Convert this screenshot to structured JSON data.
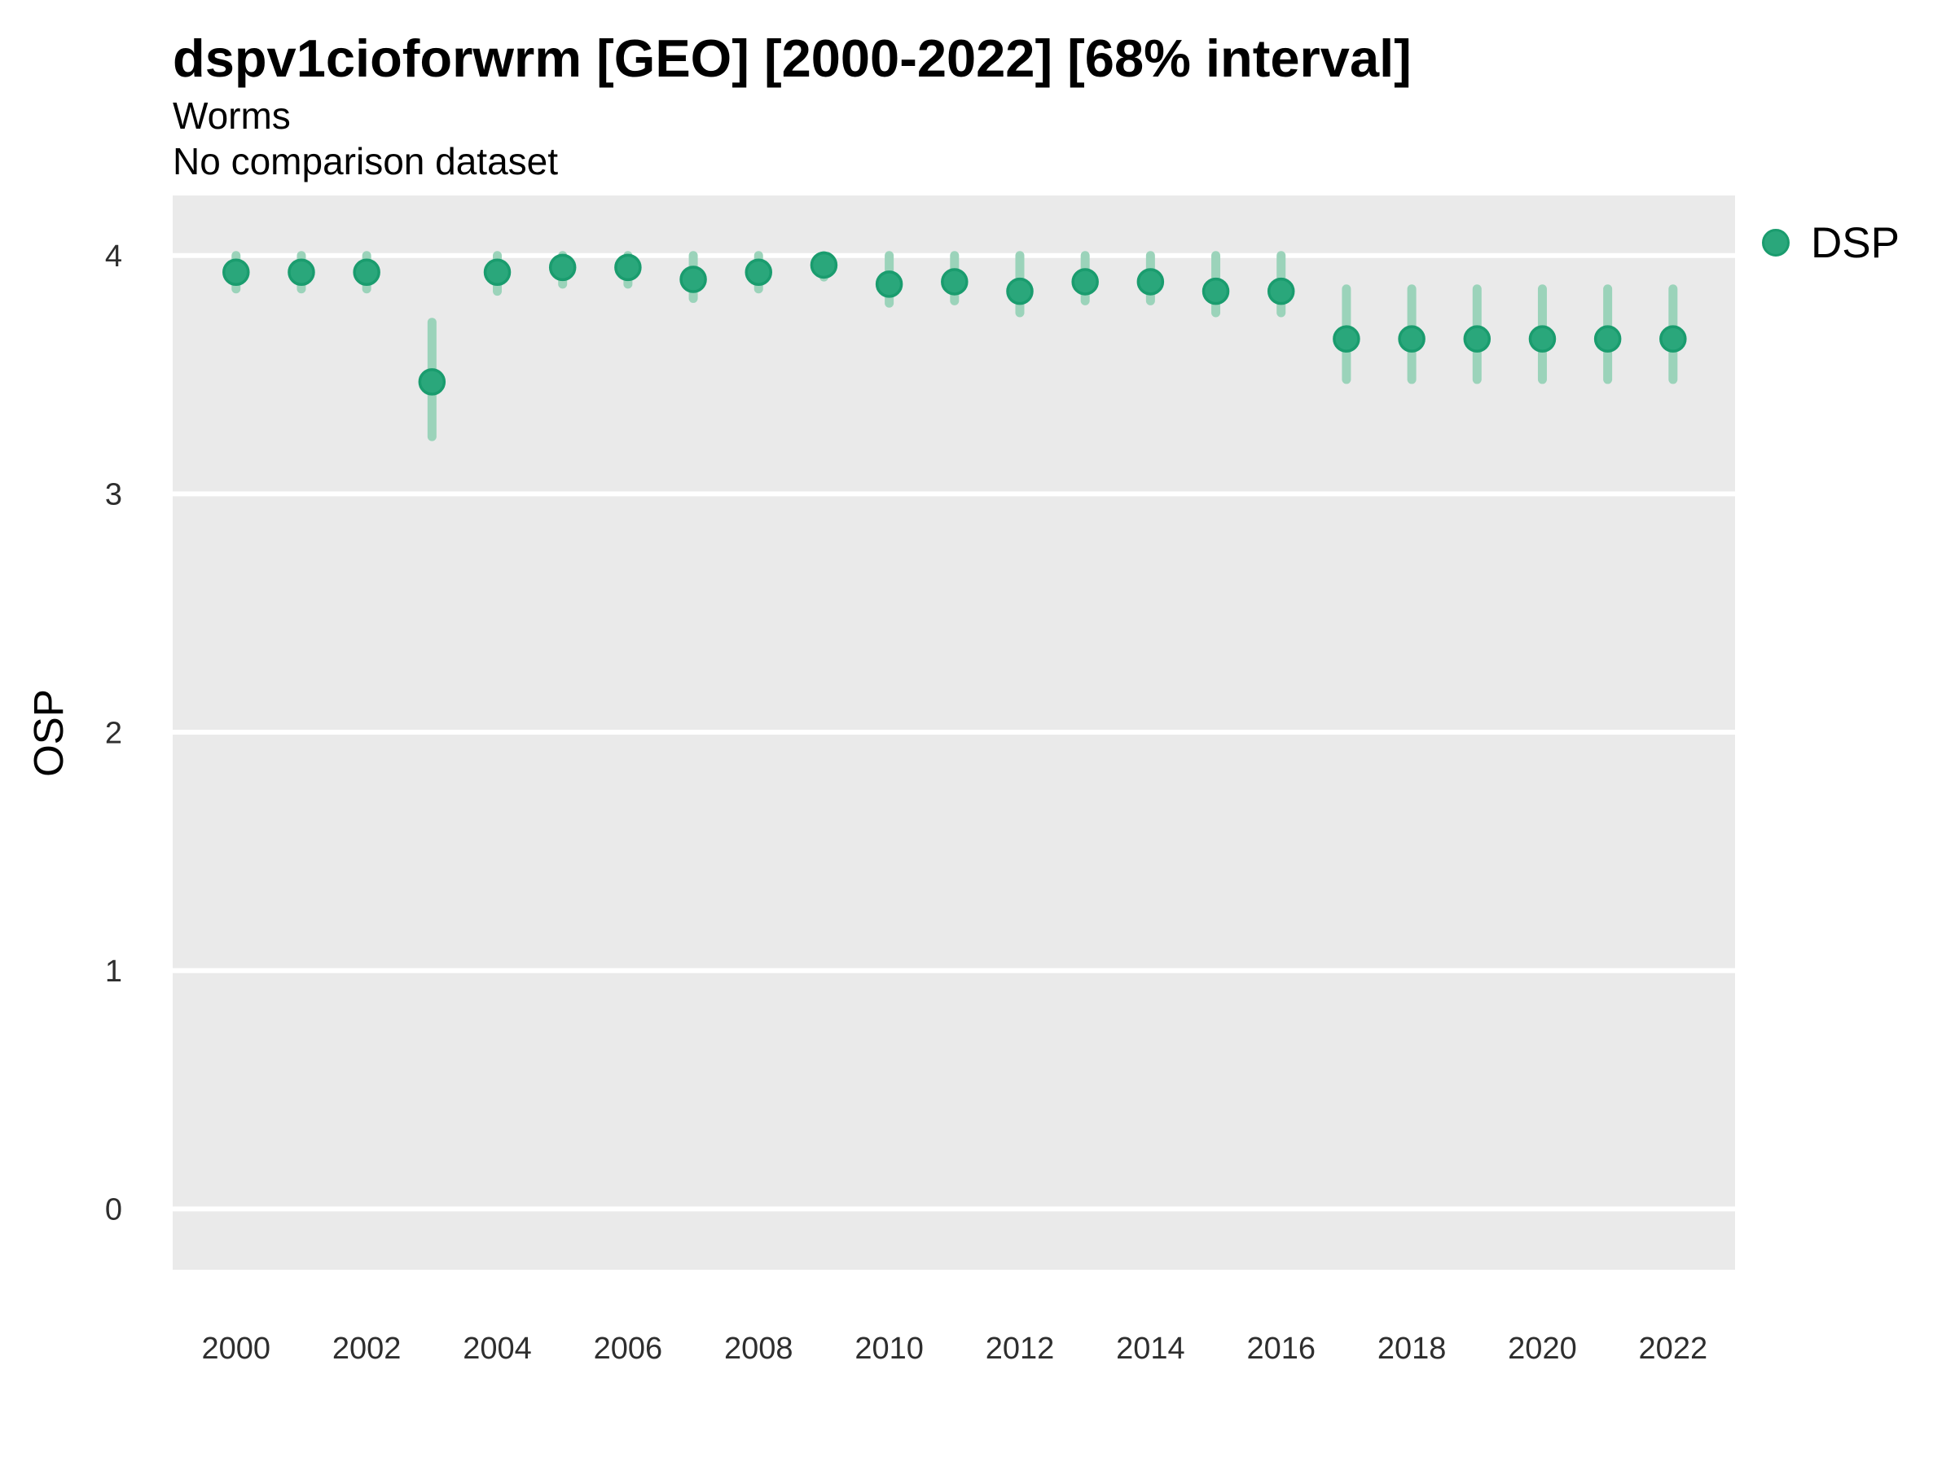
{
  "chart_data": {
    "type": "scatter",
    "title": "dspv1cioforwrm [GEO] [2000-2022] [68% interval]",
    "subtitle": "Worms",
    "note": "No comparison dataset",
    "xlabel": "",
    "ylabel": "OSP",
    "legend_position": "right",
    "grid": "horizontal-major-only",
    "x_ticks": [
      2000,
      2002,
      2004,
      2006,
      2008,
      2010,
      2012,
      2014,
      2016,
      2018,
      2020,
      2022
    ],
    "y_ticks": [
      0,
      1,
      2,
      3,
      4
    ],
    "xlim": [
      1999.03,
      2022.95
    ],
    "ylim": [
      -0.255,
      4.252
    ],
    "series": [
      {
        "name": "DSP",
        "interval": "68%",
        "x": [
          2000,
          2001,
          2002,
          2003,
          2004,
          2005,
          2006,
          2007,
          2008,
          2009,
          2010,
          2011,
          2012,
          2013,
          2014,
          2015,
          2016,
          2017,
          2018,
          2019,
          2020,
          2021,
          2022
        ],
        "y": [
          3.93,
          3.93,
          3.93,
          3.47,
          3.93,
          3.95,
          3.95,
          3.9,
          3.93,
          3.96,
          3.88,
          3.89,
          3.85,
          3.89,
          3.89,
          3.85,
          3.85,
          3.65,
          3.65,
          3.65,
          3.65,
          3.65,
          3.65
        ],
        "y_low": [
          3.86,
          3.86,
          3.86,
          3.24,
          3.85,
          3.88,
          3.88,
          3.82,
          3.86,
          3.91,
          3.8,
          3.81,
          3.76,
          3.81,
          3.81,
          3.76,
          3.76,
          3.48,
          3.48,
          3.48,
          3.48,
          3.48,
          3.48
        ],
        "y_high": [
          4.0,
          4.0,
          4.0,
          3.72,
          4.0,
          4.0,
          4.0,
          4.0,
          4.0,
          4.0,
          4.0,
          4.0,
          4.0,
          4.0,
          4.0,
          4.0,
          4.0,
          3.86,
          3.86,
          3.86,
          3.86,
          3.86,
          3.86
        ]
      }
    ],
    "colors": {
      "point_fill": "#2aa77b",
      "point_stroke": "#1a9c6e",
      "interval_bar": "#9bd3ba",
      "panel_bg": "#eaeaea",
      "grid_line": "#ffffff",
      "tick_text": "#2e2e2e"
    }
  }
}
